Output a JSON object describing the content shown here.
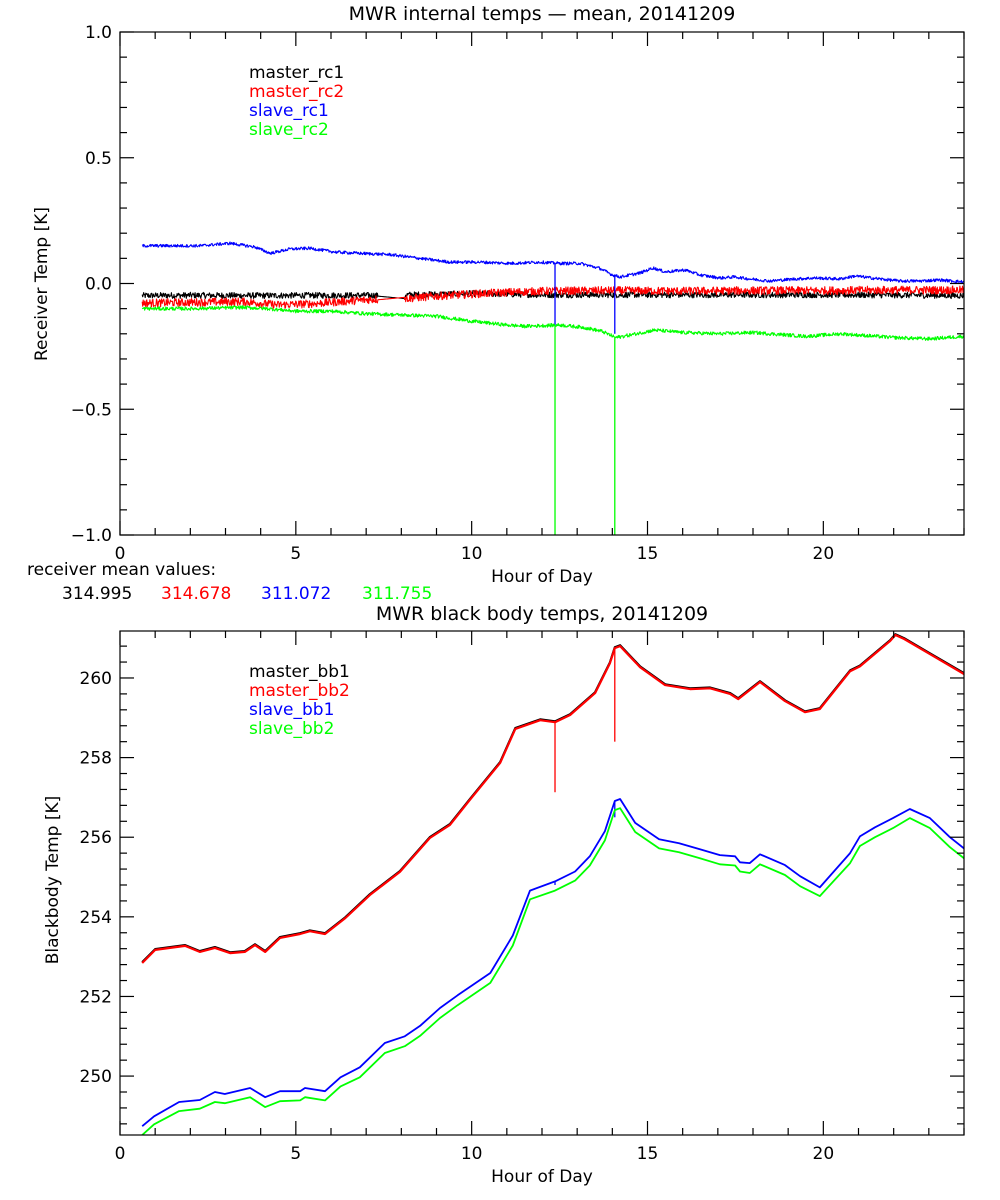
{
  "chart_data": [
    {
      "type": "line",
      "title": "MWR internal temps — mean, 20141209",
      "xlabel": "Hour of Day",
      "ylabel": "Receiver Temp [K]",
      "xlim": [
        0,
        24
      ],
      "ylim": [
        -1.0,
        1.0
      ],
      "xticks": [
        0,
        5,
        10,
        15,
        20
      ],
      "xtick_labels": [
        "0",
        "5",
        "10",
        "15",
        "20"
      ],
      "x_minor_step": 1,
      "yticks": [
        -1.0,
        -0.5,
        0.0,
        0.5,
        1.0
      ],
      "ytick_labels": [
        "−1.0",
        "−0.5",
        "0.0",
        "0.5",
        "1.0"
      ],
      "y_minor_step": 0.1,
      "grid": false,
      "legend_position": "top-left",
      "noisy": true,
      "series": [
        {
          "name": "master_rc1",
          "color": "#000000",
          "noise": 0.012,
          "x": [
            0.63,
            2,
            4,
            6,
            7.3,
            7.31,
            8.1,
            8.11,
            10,
            12,
            14,
            16,
            18,
            20,
            22,
            24
          ],
          "y": [
            -0.048,
            -0.047,
            -0.048,
            -0.047,
            -0.047,
            -0.05,
            -0.06,
            -0.045,
            -0.04,
            -0.045,
            -0.045,
            -0.045,
            -0.045,
            -0.045,
            -0.046,
            -0.048
          ]
        },
        {
          "name": "master_rc2",
          "color": "#ff0000",
          "noise": 0.016,
          "x": [
            0.63,
            2,
            3.5,
            4.5,
            5.5,
            6.5,
            7.3,
            7.31,
            8.1,
            8.11,
            9,
            10,
            11,
            12,
            14,
            16,
            18,
            20,
            22,
            24
          ],
          "y": [
            -0.078,
            -0.075,
            -0.072,
            -0.085,
            -0.08,
            -0.07,
            -0.062,
            -0.065,
            -0.055,
            -0.06,
            -0.05,
            -0.042,
            -0.035,
            -0.03,
            -0.028,
            -0.03,
            -0.028,
            -0.028,
            -0.026,
            -0.026
          ]
        },
        {
          "name": "slave_rc1",
          "color": "#0000ff",
          "noise": 0.006,
          "x": [
            0.63,
            2.27,
            3.13,
            3.84,
            4.27,
            4.83,
            5.4,
            6.12,
            6.82,
            7.68,
            8.53,
            9.38,
            10.24,
            11.1,
            11.95,
            12.51,
            13.08,
            13.65,
            13.99,
            14.22,
            14.79,
            15.16,
            15.5,
            16.07,
            16.49,
            17.06,
            17.49,
            17.91,
            18.48,
            19.19,
            19.76,
            20.47,
            20.9,
            21.61,
            22.17,
            22.74,
            23.31,
            24.0
          ],
          "y": [
            0.15,
            0.15,
            0.16,
            0.145,
            0.12,
            0.137,
            0.14,
            0.125,
            0.12,
            0.115,
            0.1,
            0.085,
            0.085,
            0.08,
            0.085,
            0.08,
            0.08,
            0.06,
            0.035,
            0.026,
            0.042,
            0.062,
            0.046,
            0.054,
            0.034,
            0.022,
            0.026,
            0.018,
            0.01,
            0.018,
            0.022,
            0.018,
            0.03,
            0.018,
            0.01,
            0.01,
            0.014,
            0.006
          ],
          "spikes": [
            {
              "x": 12.37,
              "from": 0.08,
              "to": -0.17
            },
            {
              "x": 14.07,
              "from": 0.03,
              "to": -0.2
            }
          ]
        },
        {
          "name": "slave_rc2",
          "color": "#00ff00",
          "noise": 0.007,
          "x": [
            0.63,
            2,
            3.5,
            4.2,
            5,
            6,
            7,
            8,
            9,
            10,
            11,
            11.5,
            12.5,
            13.2,
            13.7,
            14.1,
            14.5,
            15.2,
            16,
            17,
            18,
            19,
            19.5,
            20.5,
            21,
            22,
            23,
            24
          ],
          "y": [
            -0.1,
            -0.1,
            -0.095,
            -0.1,
            -0.11,
            -0.11,
            -0.12,
            -0.125,
            -0.13,
            -0.15,
            -0.165,
            -0.17,
            -0.165,
            -0.175,
            -0.19,
            -0.215,
            -0.205,
            -0.185,
            -0.195,
            -0.2,
            -0.195,
            -0.205,
            -0.21,
            -0.2,
            -0.205,
            -0.215,
            -0.22,
            -0.21
          ],
          "spikes": [
            {
              "x": 12.37,
              "from": -0.17,
              "to": -1.0
            },
            {
              "x": 14.07,
              "from": -0.215,
              "to": -1.0
            }
          ]
        }
      ],
      "annotations": {
        "mean_label": "receiver mean values:",
        "mean_values": [
          {
            "text": "314.995",
            "color": "#000000"
          },
          {
            "text": "314.678",
            "color": "#ff0000"
          },
          {
            "text": "311.072",
            "color": "#0000ff"
          },
          {
            "text": "311.755",
            "color": "#00ff00"
          }
        ]
      }
    },
    {
      "type": "line",
      "title": "MWR black body temps, 20141209",
      "xlabel": "Hour of Day",
      "ylabel": "Blackbody Temp [K]",
      "xlim": [
        0,
        24
      ],
      "ylim": [
        248.52,
        261.18
      ],
      "xticks": [
        0,
        5,
        10,
        15,
        20
      ],
      "xtick_labels": [
        "0",
        "5",
        "10",
        "15",
        "20"
      ],
      "x_minor_step": 1,
      "yticks": [
        250,
        252,
        254,
        256,
        258,
        260
      ],
      "ytick_labels": [
        "250",
        "252",
        "254",
        "256",
        "258",
        "260"
      ],
      "y_minor_step": 0.4,
      "grid": false,
      "legend_position": "top-left",
      "noisy": false,
      "series": [
        {
          "name": "master_bb1",
          "color": "#000000",
          "offset": 0.02,
          "x": [
            0.63,
            1.0,
            1.85,
            2.27,
            2.7,
            3.13,
            3.55,
            3.84,
            4.13,
            4.55,
            5.12,
            5.4,
            5.83,
            6.41,
            7.11,
            7.96,
            8.81,
            9.38,
            9.95,
            10.81,
            11.24,
            11.95,
            12.37,
            12.8,
            13.51,
            13.93,
            14.07,
            14.22,
            14.79,
            15.5,
            16.21,
            16.78,
            17.35,
            17.58,
            18.2,
            18.91,
            19.48,
            19.9,
            20.76,
            21.04,
            21.9,
            22.05,
            22.3,
            23.03,
            24.0
          ],
          "y": [
            252.84,
            253.17,
            253.27,
            253.12,
            253.22,
            253.09,
            253.12,
            253.29,
            253.12,
            253.47,
            253.57,
            253.64,
            253.57,
            253.97,
            254.55,
            255.13,
            255.98,
            256.31,
            256.94,
            257.87,
            258.72,
            258.94,
            258.89,
            259.07,
            259.62,
            260.37,
            260.75,
            260.8,
            260.27,
            259.82,
            259.72,
            259.74,
            259.6,
            259.47,
            259.9,
            259.42,
            259.14,
            259.22,
            260.17,
            260.29,
            260.93,
            261.08,
            260.98,
            260.6,
            260.1
          ],
          "spikes": []
        },
        {
          "name": "master_bb2",
          "color": "#ff0000",
          "offset": 0.0,
          "x": [
            0.63,
            1.0,
            1.85,
            2.27,
            2.7,
            3.13,
            3.55,
            3.84,
            4.13,
            4.55,
            5.12,
            5.4,
            5.83,
            6.41,
            7.11,
            7.96,
            8.81,
            9.38,
            9.95,
            10.81,
            11.24,
            11.95,
            12.37,
            12.8,
            13.51,
            13.93,
            14.07,
            14.22,
            14.79,
            15.5,
            16.21,
            16.78,
            17.35,
            17.58,
            18.2,
            18.91,
            19.48,
            19.9,
            20.76,
            21.04,
            21.9,
            22.05,
            22.3,
            23.03,
            24.0
          ],
          "y": [
            252.84,
            253.17,
            253.27,
            253.12,
            253.22,
            253.09,
            253.12,
            253.29,
            253.12,
            253.47,
            253.57,
            253.64,
            253.57,
            253.97,
            254.55,
            255.13,
            255.98,
            256.31,
            256.94,
            257.87,
            258.72,
            258.94,
            258.89,
            259.07,
            259.62,
            260.37,
            260.75,
            260.8,
            260.27,
            259.82,
            259.72,
            259.74,
            259.6,
            259.47,
            259.9,
            259.42,
            259.14,
            259.22,
            260.17,
            260.29,
            260.93,
            261.08,
            260.98,
            260.6,
            260.1
          ],
          "spikes": [
            {
              "x": 12.37,
              "from": 258.89,
              "to": 257.13
            },
            {
              "x": 14.07,
              "from": 260.75,
              "to": 258.4
            }
          ]
        },
        {
          "name": "slave_bb1",
          "color": "#0000ff",
          "offset": 0.0,
          "x": [
            0.63,
            0.97,
            1.68,
            2.27,
            2.7,
            2.98,
            3.7,
            4.13,
            4.55,
            5.12,
            5.26,
            5.83,
            6.27,
            6.82,
            7.53,
            8.1,
            8.53,
            9.1,
            9.6,
            10.53,
            11.17,
            11.66,
            12.37,
            12.94,
            13.36,
            13.79,
            14.07,
            14.22,
            14.65,
            15.33,
            15.9,
            16.49,
            17.06,
            17.49,
            17.63,
            17.91,
            18.2,
            18.91,
            19.34,
            19.9,
            20.76,
            21.04,
            21.47,
            21.98,
            22.46,
            23.03,
            23.6,
            24.0
          ],
          "y": [
            248.74,
            248.99,
            249.35,
            249.4,
            249.6,
            249.55,
            249.7,
            249.47,
            249.62,
            249.62,
            249.7,
            249.62,
            249.97,
            250.22,
            250.83,
            251.0,
            251.26,
            251.71,
            252.03,
            252.59,
            253.53,
            254.66,
            254.89,
            255.14,
            255.52,
            256.15,
            256.91,
            256.96,
            256.36,
            255.95,
            255.85,
            255.7,
            255.55,
            255.52,
            255.37,
            255.35,
            255.57,
            255.3,
            255.02,
            254.74,
            255.6,
            256.02,
            256.25,
            256.48,
            256.71,
            256.48,
            256.0,
            255.72
          ],
          "spikes": [
            {
              "x": 12.37,
              "from": 254.89,
              "to": 254.8
            },
            {
              "x": 14.07,
              "from": 256.91,
              "to": 256.5
            }
          ]
        },
        {
          "name": "slave_bb2",
          "color": "#00ff00",
          "offset": 0.0,
          "x": [
            0.63,
            0.97,
            1.68,
            2.27,
            2.7,
            2.98,
            3.7,
            4.13,
            4.55,
            5.12,
            5.26,
            5.83,
            6.27,
            6.82,
            7.53,
            8.1,
            8.53,
            9.1,
            9.6,
            10.53,
            11.17,
            11.66,
            12.37,
            12.94,
            13.36,
            13.79,
            14.07,
            14.22,
            14.65,
            15.33,
            15.9,
            16.49,
            17.06,
            17.49,
            17.63,
            17.91,
            18.2,
            18.91,
            19.34,
            19.9,
            20.76,
            21.04,
            21.47,
            21.98,
            22.46,
            23.03,
            23.6,
            24.0
          ],
          "y": [
            248.52,
            248.79,
            249.12,
            249.18,
            249.35,
            249.32,
            249.47,
            249.22,
            249.37,
            249.39,
            249.47,
            249.39,
            249.74,
            249.97,
            250.58,
            250.75,
            251.01,
            251.46,
            251.78,
            252.34,
            253.28,
            254.44,
            254.66,
            254.91,
            255.29,
            255.92,
            256.68,
            256.73,
            256.13,
            255.72,
            255.62,
            255.47,
            255.32,
            255.29,
            255.14,
            255.1,
            255.32,
            255.05,
            254.77,
            254.52,
            255.35,
            255.78,
            256.0,
            256.23,
            256.48,
            256.23,
            255.75,
            255.47
          ],
          "spikes": []
        }
      ]
    }
  ]
}
